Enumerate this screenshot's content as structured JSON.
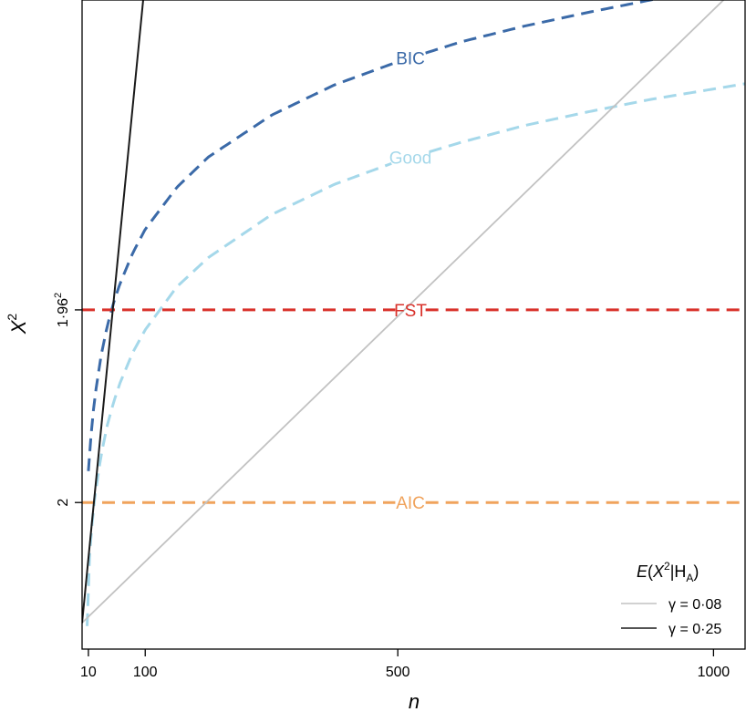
{
  "chart_data": {
    "type": "line",
    "xlabel": "n",
    "ylabel": "X",
    "ylabel_sup": "2",
    "xlim": [
      0,
      1050
    ],
    "ylim": [
      0.6,
      6.8
    ],
    "x_ticks": [
      {
        "value": 10,
        "label": "10"
      },
      {
        "value": 100,
        "label": "100"
      },
      {
        "value": 500,
        "label": "500"
      },
      {
        "value": 1000,
        "label": "1000"
      }
    ],
    "y_ticks": [
      {
        "value": 2,
        "label": "2",
        "sup": ""
      },
      {
        "value": 3.84,
        "label": "1·96",
        "sup": "2"
      }
    ],
    "grid": false,
    "series": [
      {
        "name": "BIC",
        "color": "#3b6aa8",
        "style": "dashed",
        "function": "log",
        "x": [
          10,
          15,
          20,
          30,
          40,
          50,
          60,
          80,
          100,
          150,
          200,
          300,
          400,
          500,
          600,
          700,
          800,
          900,
          1000,
          1050
        ],
        "values": [
          2.3,
          2.71,
          3.0,
          3.4,
          3.69,
          3.91,
          4.09,
          4.38,
          4.61,
          5.01,
          5.3,
          5.7,
          5.99,
          6.21,
          6.4,
          6.55,
          6.68,
          6.8,
          6.91,
          6.96
        ]
      },
      {
        "name": "Good",
        "color": "#a5d8ea",
        "style": "dashed",
        "function": "log",
        "x": [
          8,
          10,
          15,
          20,
          30,
          40,
          50,
          60,
          80,
          100,
          150,
          200,
          300,
          400,
          500,
          600,
          700,
          800,
          900,
          1000,
          1050
        ],
        "values": [
          0.82,
          1.35,
          1.75,
          2.04,
          2.45,
          2.74,
          2.96,
          3.14,
          3.43,
          3.65,
          4.06,
          4.34,
          4.75,
          5.04,
          5.26,
          5.44,
          5.6,
          5.73,
          5.85,
          5.95,
          6.0
        ]
      },
      {
        "name": "FST",
        "color": "#d9322b",
        "style": "dashed",
        "function": "constant",
        "x": [
          0,
          1050
        ],
        "values": [
          3.84,
          3.84
        ]
      },
      {
        "name": "AIC",
        "color": "#f0a35c",
        "style": "dashed",
        "function": "constant",
        "x": [
          0,
          1050
        ],
        "values": [
          2,
          2
        ]
      },
      {
        "name": "γ = 0·08",
        "color": "#c2c2c2",
        "style": "solid",
        "x": [
          0,
          1050
        ],
        "values": [
          0.85,
          7.0
        ]
      },
      {
        "name": "γ = 0·25",
        "color": "#1a1a1a",
        "style": "solid",
        "x": [
          0,
          100
        ],
        "values": [
          0.85,
          7.0
        ]
      }
    ],
    "curve_labels": [
      {
        "series": "BIC",
        "text": "BIC"
      },
      {
        "series": "Good",
        "text": "Good"
      },
      {
        "series": "FST",
        "text": "FST"
      },
      {
        "series": "AIC",
        "text": "AIC"
      }
    ],
    "legend": {
      "placement": "bottom-right",
      "title": "E(X²|H_A)",
      "entries": [
        {
          "label": "γ = 0·08",
          "color": "#c2c2c2"
        },
        {
          "label": "γ = 0·25",
          "color": "#1a1a1a"
        }
      ]
    }
  }
}
